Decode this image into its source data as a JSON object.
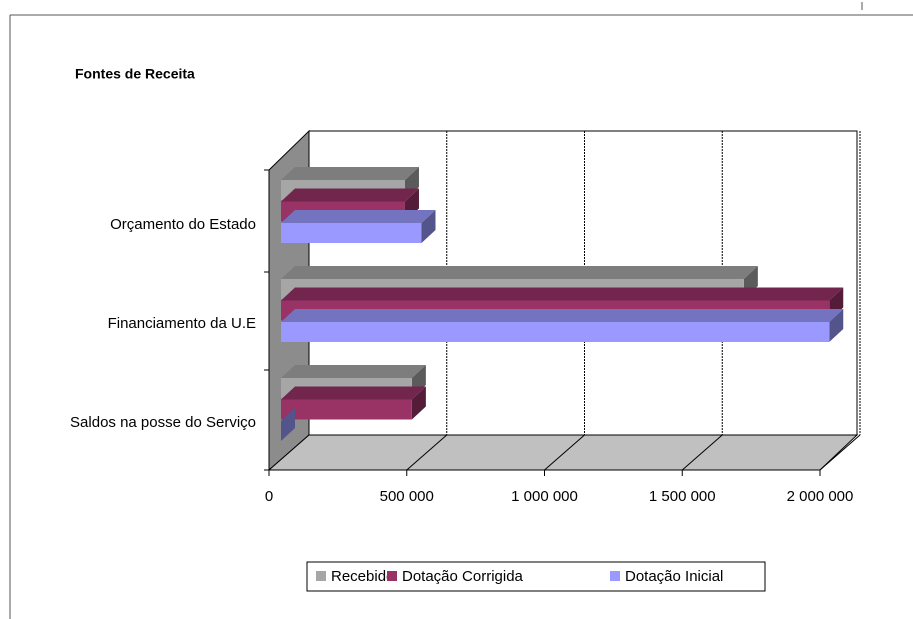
{
  "chart_data": {
    "type": "bar3d_horizontal",
    "title": "Fontes de Receita",
    "categories": [
      "Orçamento do Estado",
      "Financiamento da U.E",
      "Saldos na posse do Serviço"
    ],
    "series": [
      {
        "name": "Recebido",
        "color": "#a6a6a6",
        "values": [
          450000,
          1680000,
          475000
        ]
      },
      {
        "name": "Dotação Corrigida",
        "color": "#993366",
        "values": [
          450000,
          1990000,
          475000
        ]
      },
      {
        "name": "Dotação Inicial",
        "color": "#9999ff",
        "values": [
          510000,
          1990000,
          0
        ]
      }
    ],
    "xlim": [
      0,
      2000000
    ],
    "xticks": [
      0,
      {
        "value": 500000,
        "label": "500 000"
      },
      {
        "value": 1000000,
        "label": "1 000 000"
      },
      {
        "value": 1500000,
        "label": "1 500 000"
      },
      {
        "value": 2000000,
        "label": "2 000 000"
      }
    ],
    "grid": true,
    "legend": "bottom"
  }
}
